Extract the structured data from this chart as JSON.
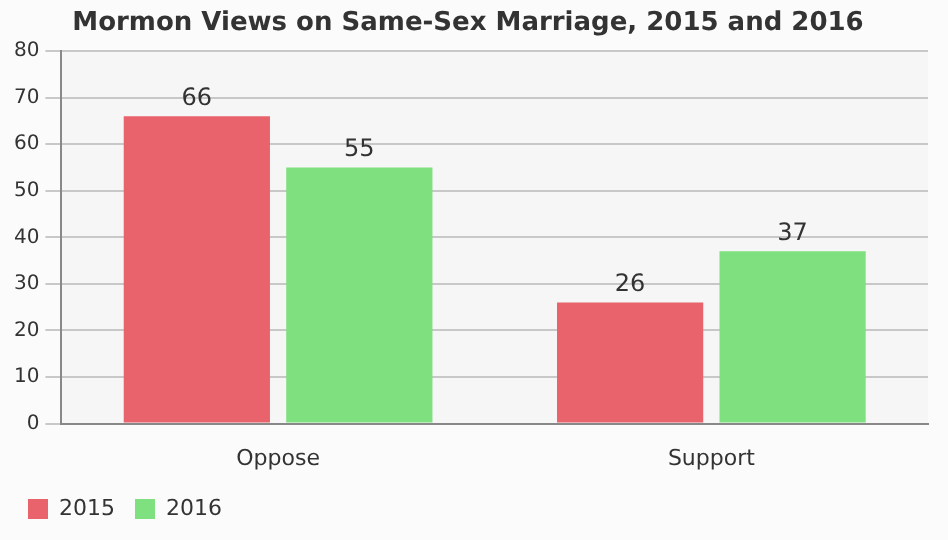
{
  "chart_data": {
    "type": "bar",
    "title": "Mormon Views on Same-Sex Marriage, 2015 and 2016",
    "categories": [
      "Oppose",
      "Support"
    ],
    "series": [
      {
        "name": "2015",
        "color": "#e8636b",
        "values": [
          66,
          26
        ]
      },
      {
        "name": "2016",
        "color": "#7ee07e",
        "values": [
          55,
          37
        ]
      }
    ],
    "ylim": [
      0,
      80
    ],
    "yticks": [
      0,
      10,
      20,
      30,
      40,
      50,
      60,
      70,
      80
    ],
    "grid": "y",
    "legend": "bottom left",
    "data_labels": true
  }
}
